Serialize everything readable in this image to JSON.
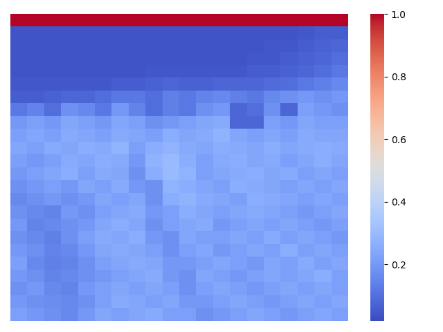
{
  "chart_data": {
    "type": "heatmap",
    "color": "coolwarm",
    "tick_labels": false,
    "colorbar_range": [
      0.02,
      1.0
    ],
    "colorbar_ticks": [
      0.2,
      0.4,
      0.6,
      0.8,
      {
        "value": 1.0,
        "label": "1.0"
      }
    ],
    "cells": [
      [
        1.0,
        1.0,
        1.0,
        1.0,
        1.0,
        1.0,
        1.0,
        1.0,
        1.0,
        1.0,
        1.0,
        1.0,
        1.0,
        1.0,
        1.0,
        1.0,
        1.0,
        1.0,
        1.0,
        1.0
      ],
      [
        0.04,
        0.04,
        0.04,
        0.04,
        0.04,
        0.04,
        0.04,
        0.04,
        0.04,
        0.04,
        0.04,
        0.04,
        0.04,
        0.04,
        0.04,
        0.04,
        0.04,
        0.05,
        0.06,
        0.06
      ],
      [
        0.04,
        0.04,
        0.04,
        0.04,
        0.04,
        0.04,
        0.04,
        0.04,
        0.04,
        0.04,
        0.04,
        0.04,
        0.04,
        0.04,
        0.04,
        0.05,
        0.05,
        0.06,
        0.07,
        0.08
      ],
      [
        0.04,
        0.04,
        0.04,
        0.04,
        0.04,
        0.04,
        0.04,
        0.04,
        0.04,
        0.04,
        0.04,
        0.04,
        0.04,
        0.04,
        0.05,
        0.05,
        0.06,
        0.07,
        0.08,
        0.1
      ],
      [
        0.04,
        0.04,
        0.04,
        0.04,
        0.04,
        0.04,
        0.04,
        0.04,
        0.05,
        0.05,
        0.05,
        0.05,
        0.05,
        0.05,
        0.06,
        0.06,
        0.07,
        0.08,
        0.1,
        0.12
      ],
      [
        0.05,
        0.05,
        0.05,
        0.05,
        0.05,
        0.05,
        0.06,
        0.06,
        0.07,
        0.08,
        0.07,
        0.07,
        0.08,
        0.08,
        0.08,
        0.09,
        0.1,
        0.12,
        0.14,
        0.16
      ],
      [
        0.06,
        0.06,
        0.07,
        0.08,
        0.08,
        0.1,
        0.12,
        0.12,
        0.1,
        0.14,
        0.12,
        0.15,
        0.16,
        0.14,
        0.12,
        0.16,
        0.18,
        0.2,
        0.18,
        0.2
      ],
      [
        0.12,
        0.15,
        0.1,
        0.18,
        0.16,
        0.12,
        0.2,
        0.15,
        0.1,
        0.14,
        0.12,
        0.18,
        0.2,
        0.08,
        0.1,
        0.18,
        0.08,
        0.22,
        0.2,
        0.18
      ],
      [
        0.2,
        0.22,
        0.2,
        0.24,
        0.22,
        0.2,
        0.24,
        0.22,
        0.18,
        0.2,
        0.22,
        0.24,
        0.25,
        0.08,
        0.08,
        0.22,
        0.2,
        0.24,
        0.22,
        0.22
      ],
      [
        0.22,
        0.24,
        0.22,
        0.25,
        0.24,
        0.22,
        0.25,
        0.24,
        0.22,
        0.26,
        0.24,
        0.25,
        0.28,
        0.24,
        0.22,
        0.24,
        0.22,
        0.25,
        0.24,
        0.24
      ],
      [
        0.24,
        0.22,
        0.25,
        0.24,
        0.26,
        0.25,
        0.28,
        0.22,
        0.26,
        0.28,
        0.25,
        0.24,
        0.26,
        0.25,
        0.24,
        0.26,
        0.24,
        0.25,
        0.26,
        0.25
      ],
      [
        0.22,
        0.2,
        0.22,
        0.25,
        0.24,
        0.26,
        0.25,
        0.2,
        0.28,
        0.3,
        0.26,
        0.22,
        0.25,
        0.26,
        0.24,
        0.25,
        0.22,
        0.24,
        0.26,
        0.24
      ],
      [
        0.2,
        0.22,
        0.24,
        0.26,
        0.22,
        0.25,
        0.24,
        0.18,
        0.26,
        0.3,
        0.28,
        0.22,
        0.24,
        0.25,
        0.26,
        0.24,
        0.25,
        0.22,
        0.24,
        0.22
      ],
      [
        0.18,
        0.2,
        0.22,
        0.2,
        0.24,
        0.22,
        0.25,
        0.2,
        0.18,
        0.28,
        0.26,
        0.24,
        0.22,
        0.26,
        0.25,
        0.24,
        0.22,
        0.24,
        0.22,
        0.24
      ],
      [
        0.16,
        0.18,
        0.2,
        0.18,
        0.2,
        0.24,
        0.22,
        0.24,
        0.18,
        0.26,
        0.28,
        0.25,
        0.24,
        0.22,
        0.26,
        0.25,
        0.24,
        0.22,
        0.24,
        0.22
      ],
      [
        0.18,
        0.16,
        0.15,
        0.2,
        0.18,
        0.22,
        0.24,
        0.25,
        0.2,
        0.22,
        0.26,
        0.24,
        0.22,
        0.24,
        0.25,
        0.24,
        0.22,
        0.2,
        0.22,
        0.24
      ],
      [
        0.2,
        0.15,
        0.16,
        0.18,
        0.2,
        0.24,
        0.26,
        0.24,
        0.18,
        0.22,
        0.24,
        0.25,
        0.2,
        0.22,
        0.24,
        0.22,
        0.24,
        0.22,
        0.2,
        0.22
      ],
      [
        0.18,
        0.16,
        0.14,
        0.18,
        0.22,
        0.25,
        0.24,
        0.26,
        0.2,
        0.18,
        0.24,
        0.22,
        0.22,
        0.24,
        0.22,
        0.25,
        0.22,
        0.24,
        0.22,
        0.2
      ],
      [
        0.2,
        0.18,
        0.15,
        0.16,
        0.2,
        0.24,
        0.25,
        0.24,
        0.22,
        0.18,
        0.22,
        0.24,
        0.2,
        0.22,
        0.24,
        0.22,
        0.26,
        0.22,
        0.24,
        0.22
      ],
      [
        0.22,
        0.16,
        0.14,
        0.15,
        0.18,
        0.22,
        0.24,
        0.25,
        0.24,
        0.2,
        0.2,
        0.22,
        0.24,
        0.22,
        0.2,
        0.24,
        0.22,
        0.25,
        0.22,
        0.24
      ],
      [
        0.2,
        0.18,
        0.15,
        0.16,
        0.18,
        0.2,
        0.22,
        0.24,
        0.25,
        0.2,
        0.18,
        0.24,
        0.22,
        0.2,
        0.22,
        0.24,
        0.22,
        0.24,
        0.26,
        0.22
      ],
      [
        0.18,
        0.2,
        0.16,
        0.15,
        0.2,
        0.22,
        0.24,
        0.22,
        0.24,
        0.22,
        0.18,
        0.22,
        0.24,
        0.22,
        0.2,
        0.22,
        0.24,
        0.22,
        0.24,
        0.22
      ],
      [
        0.2,
        0.18,
        0.17,
        0.16,
        0.18,
        0.22,
        0.25,
        0.24,
        0.22,
        0.24,
        0.2,
        0.2,
        0.22,
        0.24,
        0.22,
        0.2,
        0.22,
        0.24,
        0.22,
        0.24
      ],
      [
        0.22,
        0.2,
        0.18,
        0.16,
        0.2,
        0.24,
        0.22,
        0.24,
        0.25,
        0.22,
        0.22,
        0.18,
        0.2,
        0.22,
        0.24,
        0.22,
        0.2,
        0.22,
        0.24,
        0.22
      ]
    ]
  }
}
